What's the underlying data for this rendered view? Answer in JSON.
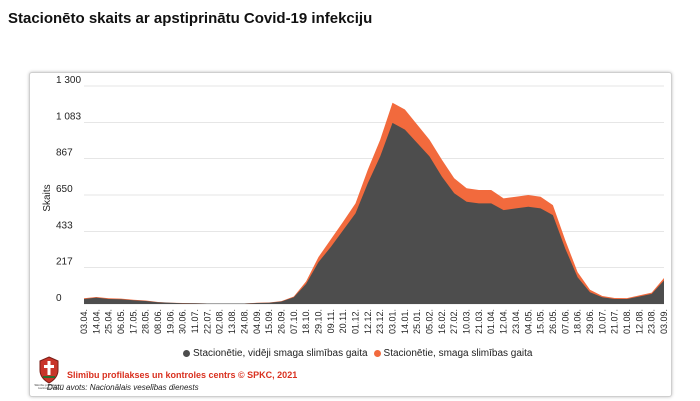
{
  "page": {
    "title": "Stacionēto skaits ar apstiprinātu Covid-19 infekciju"
  },
  "legend": [
    {
      "label": "Stacionētie, vidēji smaga slimības gaita",
      "color": "#4d4d4d"
    },
    {
      "label": "Stacionētie, smaga slimības gaita",
      "color": "#f26a3d"
    }
  ],
  "footer": {
    "credit": "Slimību profilakses un kontroles centrs © SPKC, 2021",
    "source": "Datu avots: Nacionālais veselības dienests",
    "logo_caption": "Slimību profilakses un kontroles centrs"
  },
  "chart_data": {
    "type": "area",
    "ylabel": "Skaits",
    "ylim": [
      0,
      1300
    ],
    "yticks": [
      0,
      217,
      433,
      650,
      867,
      1083,
      1300
    ],
    "ytick_labels": [
      "0",
      "217",
      "433",
      "650",
      "867",
      "1 083",
      "1 300"
    ],
    "grid": true,
    "legend_position": "bottom",
    "categories": [
      "03.04.",
      "14.04.",
      "25.04.",
      "06.05.",
      "17.05.",
      "28.05.",
      "08.06.",
      "19.06.",
      "30.06.",
      "11.07.",
      "22.07.",
      "02.08.",
      "13.08.",
      "24.08.",
      "04.09.",
      "15.09.",
      "26.09.",
      "07.10.",
      "18.10.",
      "29.10.",
      "09.11.",
      "20.11.",
      "01.12.",
      "12.12.",
      "23.12.",
      "03.01.",
      "14.01.",
      "25.01.",
      "05.02.",
      "16.02.",
      "27.02.",
      "10.03.",
      "21.03.",
      "01.04.",
      "12.04.",
      "23.04.",
      "04.05.",
      "15.05.",
      "26.05.",
      "07.06.",
      "18.06.",
      "29.06.",
      "10.07.",
      "21.07.",
      "01.08.",
      "12.08.",
      "23.08.",
      "03.09."
    ],
    "series": [
      {
        "name": "Stacionētie, vidēji smaga slimības gaita",
        "color": "#4d4d4d",
        "values": [
          30,
          38,
          30,
          28,
          22,
          18,
          10,
          7,
          5,
          4,
          3,
          3,
          3,
          3,
          6,
          8,
          15,
          40,
          120,
          250,
          340,
          440,
          540,
          720,
          880,
          1080,
          1040,
          960,
          880,
          760,
          660,
          610,
          600,
          600,
          560,
          570,
          580,
          570,
          530,
          330,
          160,
          70,
          40,
          30,
          30,
          45,
          60,
          140
        ]
      },
      {
        "name": "Stacionētie, smaga slimības gaita",
        "color": "#f26a3d",
        "values": [
          4,
          4,
          4,
          4,
          3,
          3,
          2,
          1,
          1,
          1,
          0,
          0,
          0,
          0,
          1,
          1,
          2,
          5,
          15,
          30,
          45,
          50,
          60,
          80,
          100,
          120,
          120,
          110,
          100,
          100,
          90,
          80,
          80,
          80,
          70,
          70,
          70,
          70,
          60,
          50,
          30,
          15,
          8,
          6,
          5,
          6,
          8,
          15
        ]
      }
    ]
  }
}
